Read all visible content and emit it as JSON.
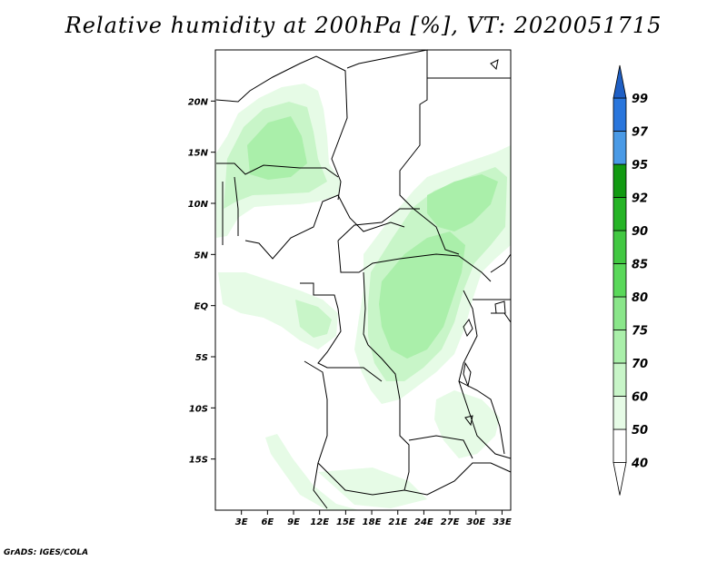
{
  "title": "Relative humidity at 200hPa [%], VT: 2020051715",
  "credit": "GrADS: IGES/COLA",
  "map": {
    "lon_range": [
      0,
      34
    ],
    "lat_range": [
      -20,
      25
    ],
    "lat_ticks": [
      {
        "value": 20,
        "label": "20N"
      },
      {
        "value": 15,
        "label": "15N"
      },
      {
        "value": 10,
        "label": "10N"
      },
      {
        "value": 5,
        "label": "5N"
      },
      {
        "value": 0,
        "label": "EQ"
      },
      {
        "value": -5,
        "label": "5S"
      },
      {
        "value": -10,
        "label": "10S"
      },
      {
        "value": -15,
        "label": "15S"
      }
    ],
    "lon_ticks": [
      {
        "value": 3,
        "label": "3E"
      },
      {
        "value": 6,
        "label": "6E"
      },
      {
        "value": 9,
        "label": "9E"
      },
      {
        "value": 12,
        "label": "12E"
      },
      {
        "value": 15,
        "label": "15E"
      },
      {
        "value": 18,
        "label": "18E"
      },
      {
        "value": 21,
        "label": "21E"
      },
      {
        "value": 24,
        "label": "24E"
      },
      {
        "value": 27,
        "label": "27E"
      },
      {
        "value": 30,
        "label": "30E"
      },
      {
        "value": 33,
        "label": "33E"
      }
    ]
  },
  "colorbar": {
    "levels": [
      {
        "label": "40",
        "color": "#ffffff"
      },
      {
        "label": "50",
        "color": "#e6fbe6"
      },
      {
        "label": "60",
        "color": "#c8f5c8"
      },
      {
        "label": "70",
        "color": "#aaefaa"
      },
      {
        "label": "75",
        "color": "#8ae68a"
      },
      {
        "label": "80",
        "color": "#5ad85a"
      },
      {
        "label": "85",
        "color": "#42c842"
      },
      {
        "label": "90",
        "color": "#26b426"
      },
      {
        "label": "92",
        "color": "#129a12"
      },
      {
        "label": "95",
        "color": "#4a9ae6"
      },
      {
        "label": "97",
        "color": "#2a76dc"
      },
      {
        "label": "99",
        "color": "#1f5fc4"
      }
    ],
    "over_color": "#1f5fc4",
    "under_color": "#ffffff"
  }
}
